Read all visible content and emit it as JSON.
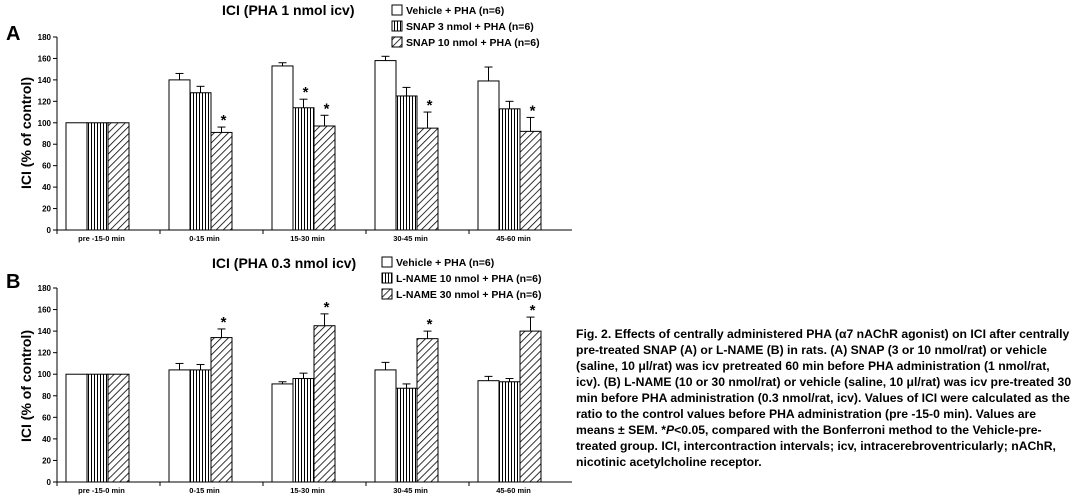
{
  "patterns": {
    "none": "none",
    "vertical": "vertical-lines",
    "diagonal": "diagonal-lines"
  },
  "figure": {
    "bar_color": "#ffffff",
    "line_color": "#000000"
  },
  "chart_data": [
    {
      "panel_label": "A",
      "type": "bar",
      "title": "ICI (PHA 1 nmol icv)",
      "ylabel": "ICI (% of control)",
      "xlabel": "",
      "ylim": [
        0,
        180
      ],
      "yticks": [
        "0",
        "20",
        "40",
        "60",
        "80",
        "100",
        "120",
        "140",
        "160",
        "180"
      ],
      "grid": false,
      "legend_position": "top-right",
      "categories": [
        "pre -15-0 min",
        "0-15 min",
        "15-30 min",
        "30-45 min",
        "45-60 min"
      ],
      "series": [
        {
          "name": "Vehicle + PHA (n=6)",
          "pattern": "none",
          "values": [
            100,
            140,
            153,
            158,
            139
          ],
          "errors": [
            0,
            6,
            3,
            4,
            13
          ],
          "marks": [
            "",
            "",
            "",
            "",
            ""
          ]
        },
        {
          "name": "SNAP 3 nmol + PHA (n=6)",
          "pattern": "vertical",
          "values": [
            100,
            128,
            114,
            125,
            113
          ],
          "errors": [
            0,
            6,
            8,
            8,
            7
          ],
          "marks": [
            "",
            "",
            "*",
            "",
            ""
          ]
        },
        {
          "name": "SNAP 10 nmol + PHA (n=6)",
          "pattern": "diagonal",
          "values": [
            100,
            91,
            97,
            95,
            92
          ],
          "errors": [
            0,
            5,
            10,
            15,
            13
          ],
          "marks": [
            "",
            "*",
            "*",
            "*",
            "*"
          ]
        }
      ]
    },
    {
      "panel_label": "B",
      "type": "bar",
      "title": "ICI (PHA 0.3 nmol icv)",
      "ylabel": "ICI (% of control)",
      "xlabel": "",
      "ylim": [
        0,
        180
      ],
      "yticks": [
        "0",
        "20",
        "40",
        "60",
        "80",
        "100",
        "120",
        "140",
        "160",
        "180"
      ],
      "grid": false,
      "legend_position": "top-right",
      "categories": [
        "pre -15-0 min",
        "0-15 min",
        "15-30 min",
        "30-45 min",
        "45-60 min"
      ],
      "series": [
        {
          "name": "Vehicle + PHA (n=6)",
          "pattern": "none",
          "values": [
            100,
            104,
            91,
            104,
            94
          ],
          "errors": [
            0,
            6,
            2,
            7,
            4
          ],
          "marks": [
            "",
            "",
            "",
            "",
            ""
          ]
        },
        {
          "name": "L-NAME 10 nmol + PHA (n=6)",
          "pattern": "vertical",
          "values": [
            100,
            104,
            96,
            87,
            93
          ],
          "errors": [
            0,
            5,
            5,
            4,
            3
          ],
          "marks": [
            "",
            "",
            "",
            "",
            ""
          ]
        },
        {
          "name": "L-NAME 30 nmol + PHA (n=6)",
          "pattern": "diagonal",
          "values": [
            100,
            134,
            145,
            133,
            140
          ],
          "errors": [
            0,
            8,
            11,
            7,
            13
          ],
          "marks": [
            "",
            "*",
            "*",
            "*",
            "*"
          ]
        }
      ]
    }
  ],
  "caption": {
    "part1": "Fig. 2. Effects of centrally administered PHA (α7 nAChR agonist) on ICI after centrally pre-treated SNAP (A) or L-NAME (B) in rats. (A) SNAP (3 or 10 nmol/rat) or vehicle (saline, 10 μl/rat) was icv pretreated 60 min before PHA administration (1 nmol/rat, icv). (B) L-NAME (10 or 30 nmol/rat) or vehicle (saline, 10 μl/rat) was icv pre-treated 30 min before PHA administration (0.3 nmol/rat, icv). Values of ICI were calculated as the ratio to the control values before PHA administration (pre -15-0 min). Values are means ± SEM. *",
    "p_italic": "P",
    "part2": "<0.05, compared with the Bonferroni method to the Vehicle-pre-treated group. ICI, intercontraction intervals; icv, intracerebroventricularly; nAChR, nicotinic acetylcholine receptor."
  }
}
